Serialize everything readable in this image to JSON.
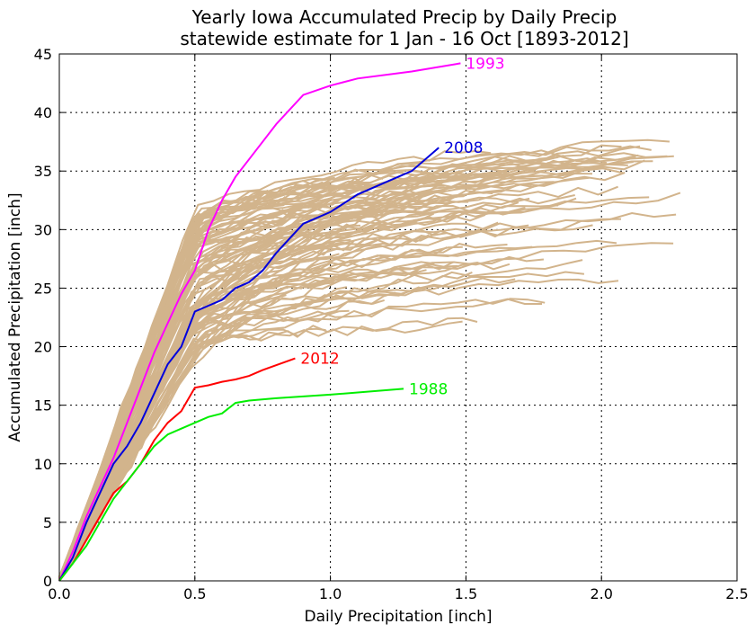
{
  "chart_data": {
    "type": "line",
    "title": "Yearly Iowa Accumulated Precip by Daily Precip",
    "subtitle": "statewide estimate for 1 Jan - 16 Oct [1893-2012]",
    "xlabel": "Daily Precipitation [inch]",
    "ylabel": "Accumulated Precipitation [inch]",
    "xlim": [
      0,
      2.5
    ],
    "ylim": [
      0,
      45
    ],
    "xticks": [
      0.0,
      0.5,
      1.0,
      1.5,
      2.0,
      2.5
    ],
    "xtick_labels": [
      "0.0",
      "0.5",
      "1.0",
      "1.5",
      "2.0",
      "2.5"
    ],
    "yticks": [
      0,
      5,
      10,
      15,
      20,
      25,
      30,
      35,
      40,
      45
    ],
    "ytick_labels": [
      "0",
      "5",
      "10",
      "15",
      "20",
      "25",
      "30",
      "35",
      "40",
      "45"
    ],
    "grid": true,
    "background_color": "#d2b48c",
    "series": [
      {
        "name": "1993",
        "color": "#ff00ff",
        "points": [
          [
            0,
            0
          ],
          [
            0.05,
            2.5
          ],
          [
            0.1,
            5.5
          ],
          [
            0.15,
            8.0
          ],
          [
            0.2,
            10.5
          ],
          [
            0.25,
            13.5
          ],
          [
            0.3,
            16.5
          ],
          [
            0.35,
            19.5
          ],
          [
            0.4,
            22.0
          ],
          [
            0.45,
            24.5
          ],
          [
            0.5,
            26.5
          ],
          [
            0.55,
            30.0
          ],
          [
            0.6,
            32.5
          ],
          [
            0.65,
            34.5
          ],
          [
            0.7,
            36.0
          ],
          [
            0.75,
            37.5
          ],
          [
            0.8,
            39.0
          ],
          [
            0.9,
            41.5
          ],
          [
            1.0,
            42.3
          ],
          [
            1.1,
            42.9
          ],
          [
            1.3,
            43.5
          ],
          [
            1.48,
            44.2
          ]
        ]
      },
      {
        "name": "2008",
        "color": "#0000dd",
        "points": [
          [
            0,
            0
          ],
          [
            0.05,
            2.0
          ],
          [
            0.1,
            5.0
          ],
          [
            0.15,
            7.5
          ],
          [
            0.2,
            10.0
          ],
          [
            0.25,
            11.5
          ],
          [
            0.3,
            13.5
          ],
          [
            0.35,
            16.0
          ],
          [
            0.4,
            18.5
          ],
          [
            0.45,
            20.0
          ],
          [
            0.5,
            23.0
          ],
          [
            0.55,
            23.5
          ],
          [
            0.6,
            24.0
          ],
          [
            0.65,
            25.0
          ],
          [
            0.7,
            25.5
          ],
          [
            0.75,
            26.5
          ],
          [
            0.8,
            28.0
          ],
          [
            0.9,
            30.5
          ],
          [
            1.0,
            31.5
          ],
          [
            1.1,
            33.0
          ],
          [
            1.2,
            34.0
          ],
          [
            1.3,
            35.0
          ],
          [
            1.4,
            37.0
          ]
        ]
      },
      {
        "name": "2012",
        "color": "#ff0000",
        "points": [
          [
            0,
            0
          ],
          [
            0.05,
            1.5
          ],
          [
            0.1,
            3.5
          ],
          [
            0.15,
            5.5
          ],
          [
            0.2,
            7.5
          ],
          [
            0.25,
            8.5
          ],
          [
            0.3,
            10.0
          ],
          [
            0.35,
            12.0
          ],
          [
            0.4,
            13.5
          ],
          [
            0.45,
            14.5
          ],
          [
            0.5,
            16.5
          ],
          [
            0.55,
            16.7
          ],
          [
            0.6,
            17.0
          ],
          [
            0.65,
            17.2
          ],
          [
            0.7,
            17.5
          ],
          [
            0.75,
            18.0
          ],
          [
            0.87,
            19.0
          ]
        ]
      },
      {
        "name": "1988",
        "color": "#00ee00",
        "points": [
          [
            0,
            0
          ],
          [
            0.05,
            1.5
          ],
          [
            0.1,
            3.0
          ],
          [
            0.15,
            5.0
          ],
          [
            0.2,
            7.0
          ],
          [
            0.25,
            8.5
          ],
          [
            0.3,
            10.0
          ],
          [
            0.35,
            11.5
          ],
          [
            0.4,
            12.5
          ],
          [
            0.45,
            13.0
          ],
          [
            0.5,
            13.5
          ],
          [
            0.55,
            14.0
          ],
          [
            0.6,
            14.3
          ],
          [
            0.65,
            15.2
          ],
          [
            0.7,
            15.4
          ],
          [
            0.8,
            15.6
          ],
          [
            1.0,
            15.9
          ],
          [
            1.27,
            16.4
          ]
        ]
      }
    ]
  }
}
